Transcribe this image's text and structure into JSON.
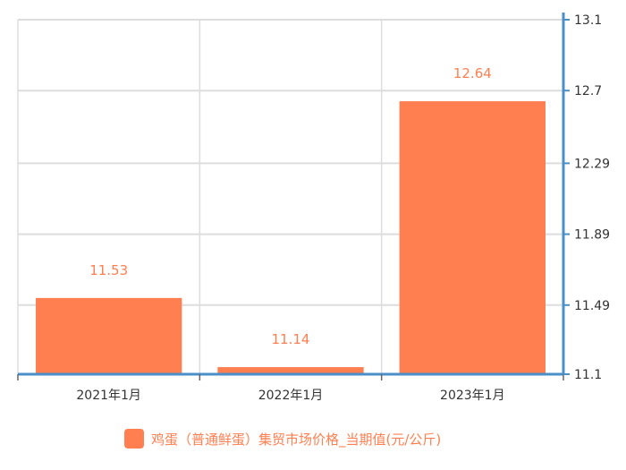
{
  "chart_data": {
    "type": "bar",
    "categories": [
      "2021年1月",
      "2022年1月",
      "2023年1月"
    ],
    "series": [
      {
        "name": "鸡蛋（普通鲜蛋）集贸市场价格_当期值(元/公斤)",
        "values": [
          11.53,
          11.14,
          12.64
        ]
      }
    ],
    "data_labels": [
      "11.53",
      "11.14",
      "12.64"
    ],
    "y_axis": {
      "position": "right",
      "min": 11.1,
      "max": 13.1,
      "ticks": [
        13.1,
        12.7,
        12.29,
        11.89,
        11.49,
        11.1
      ],
      "tick_labels": [
        "13.1",
        "12.7",
        "12.29",
        "11.89",
        "11.49",
        "11.1"
      ]
    },
    "grid": true,
    "legend_position": "bottom",
    "colors": {
      "bar": "#ff7f50",
      "axis": "#4a8fc7",
      "grid": "#dddddd",
      "label": "#ff7f50"
    }
  }
}
